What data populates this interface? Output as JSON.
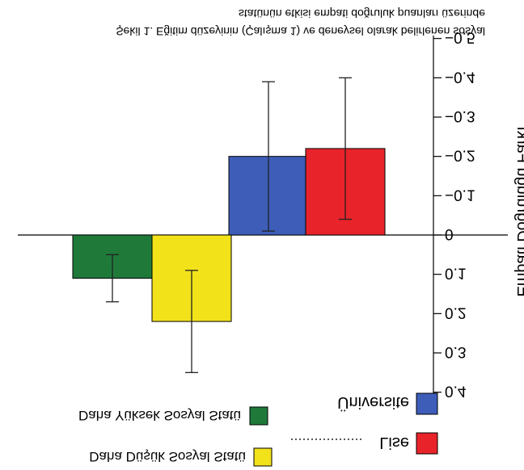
{
  "chart_data": {
    "type": "bar",
    "categories": [
      "Daha Yüksek Sosyal Statü",
      "Daha Düşük Sosyal Statü"
    ],
    "series": [
      {
        "name": "Lise",
        "color": "#e8232a",
        "values": [
          -0.22,
          0.22
        ],
        "error": [
          0.18,
          0.13
        ]
      },
      {
        "name": "Üniversite",
        "color": "#3d5db8",
        "values": [
          0.11,
          -0.2
        ],
        "error": [
          0.06,
          0.19
        ]
      }
    ],
    "ylabel": "Empati Doğruluğu Farkı",
    "ylim": [
      -0.5,
      0.4
    ],
    "yticks": [
      "0.4",
      "0.3",
      "0.2",
      "0.1",
      "0",
      "−0.1",
      "−0.2",
      "−0.3",
      "−0.4",
      "−0.5"
    ],
    "legend": {
      "lise": "Lise",
      "universite": "Üniversite",
      "dusuk": "Daha Düşük Sosyal Statü",
      "yuksek": "Daha Yüksek Sosyal Statü",
      "lise_color": "#e8232a",
      "universite_color": "#3d5db8",
      "dusuk_color": "#f2e21a",
      "yuksek_color": "#1f7a3a"
    },
    "caption_line1": "Şekil 1. Eğitim düzeyinin (Çalışma 1) ve deneysel olarak belirlenen sosyal",
    "caption_line2": "statünün etkisi empati doğruluk puanları üzerinde",
    "grid": false
  }
}
